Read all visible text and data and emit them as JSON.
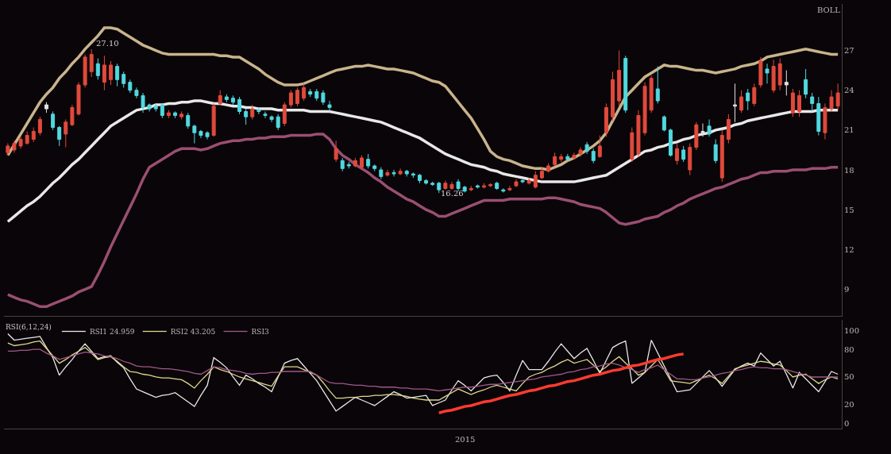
{
  "chart_data": [
    {
      "type": "candlestick",
      "categories": [
        null,
        null,
        null,
        null,
        null,
        null,
        null,
        null,
        null,
        null,
        null,
        null,
        null,
        null,
        null,
        null,
        null,
        null,
        null,
        null,
        null,
        null,
        null,
        null,
        null,
        null,
        null,
        null,
        null,
        null,
        null,
        null,
        null,
        null,
        null,
        null,
        null,
        null,
        null,
        null,
        null,
        null,
        null,
        null,
        null,
        null,
        null,
        null,
        null,
        null,
        null,
        null,
        null,
        null,
        null,
        null,
        null,
        null,
        null,
        null,
        null,
        null,
        null,
        null,
        null,
        null,
        null,
        null,
        null,
        null,
        null,
        null,
        null,
        null,
        null,
        null,
        null,
        null,
        null,
        null,
        null,
        null,
        null,
        null,
        null,
        null,
        null,
        null,
        null,
        null,
        null,
        null,
        null,
        null,
        null,
        null,
        null,
        null,
        null,
        null,
        null,
        null,
        null,
        null,
        null,
        null,
        null,
        null,
        null,
        null,
        null,
        null,
        null,
        null,
        null,
        null,
        null,
        null,
        null,
        null,
        null,
        null,
        null,
        null,
        null,
        null,
        null,
        null,
        null,
        null
      ],
      "ohlc": [
        [
          19.3,
          20.0,
          19.1,
          19.8
        ],
        [
          19.5,
          20.2,
          19.3,
          20.0
        ],
        [
          19.8,
          20.5,
          19.6,
          20.3
        ],
        [
          20.0,
          20.9,
          19.9,
          20.6
        ],
        [
          20.3,
          21.2,
          20.1,
          20.9
        ],
        [
          20.8,
          22.0,
          20.6,
          21.8
        ],
        [
          22.9,
          23.1,
          22.3,
          22.6
        ],
        [
          22.2,
          22.4,
          21.0,
          21.2
        ],
        [
          21.2,
          21.3,
          19.8,
          20.3
        ],
        [
          20.7,
          21.8,
          19.7,
          21.6
        ],
        [
          21.4,
          22.9,
          21.3,
          22.7
        ],
        [
          22.2,
          24.6,
          22.1,
          24.4
        ],
        [
          24.4,
          26.7,
          24.2,
          26.5
        ],
        [
          25.4,
          27.1,
          25.0,
          26.7
        ],
        [
          26.0,
          26.4,
          24.8,
          25.1
        ],
        [
          24.6,
          26.6,
          24.0,
          25.9
        ],
        [
          24.8,
          26.2,
          24.4,
          25.9
        ],
        [
          25.8,
          26.0,
          24.3,
          24.8
        ],
        [
          25.2,
          25.4,
          24.2,
          24.5
        ],
        [
          24.6,
          24.8,
          23.8,
          24.0
        ],
        [
          24.0,
          24.2,
          23.4,
          23.6
        ],
        [
          23.6,
          23.8,
          22.3,
          22.7
        ],
        [
          22.9,
          23.0,
          22.4,
          22.6
        ],
        [
          22.8,
          23.0,
          22.4,
          22.6
        ],
        [
          22.9,
          23.0,
          21.9,
          22.1
        ],
        [
          22.1,
          22.5,
          21.9,
          22.3
        ],
        [
          22.3,
          22.4,
          21.9,
          22.1
        ],
        [
          22.0,
          22.4,
          21.8,
          22.2
        ],
        [
          22.1,
          22.3,
          21.1,
          21.3
        ],
        [
          21.3,
          21.4,
          20.0,
          20.8
        ],
        [
          20.9,
          21.0,
          20.4,
          20.6
        ],
        [
          20.8,
          20.9,
          20.3,
          20.5
        ],
        [
          20.6,
          23.0,
          20.5,
          22.8
        ],
        [
          23.0,
          24.0,
          22.9,
          23.6
        ],
        [
          23.5,
          23.7,
          23.1,
          23.3
        ],
        [
          23.4,
          23.6,
          22.9,
          23.1
        ],
        [
          23.3,
          23.5,
          22.2,
          22.4
        ],
        [
          22.4,
          22.6,
          21.4,
          22.0
        ],
        [
          22.0,
          22.9,
          21.8,
          22.6
        ],
        [
          22.5,
          22.7,
          22.2,
          22.4
        ],
        [
          22.2,
          22.4,
          21.9,
          22.1
        ],
        [
          22.0,
          22.1,
          21.6,
          21.8
        ],
        [
          22.0,
          22.2,
          21.0,
          21.2
        ],
        [
          21.5,
          23.1,
          21.3,
          22.9
        ],
        [
          22.9,
          24.0,
          22.7,
          23.8
        ],
        [
          23.0,
          24.2,
          22.8,
          24.0
        ],
        [
          23.4,
          24.5,
          23.2,
          24.2
        ],
        [
          23.9,
          24.1,
          23.5,
          23.7
        ],
        [
          23.9,
          24.1,
          23.2,
          23.4
        ],
        [
          23.8,
          24.0,
          22.9,
          23.1
        ],
        [
          22.9,
          23.2,
          22.4,
          22.7
        ],
        [
          18.8,
          20.2,
          18.6,
          19.6
        ],
        [
          18.7,
          18.9,
          17.9,
          18.1
        ],
        [
          18.4,
          18.6,
          18.1,
          18.3
        ],
        [
          18.3,
          18.9,
          18.2,
          18.7
        ],
        [
          18.2,
          19.1,
          18.0,
          18.9
        ],
        [
          18.8,
          19.2,
          18.1,
          18.3
        ],
        [
          18.3,
          18.4,
          17.9,
          18.1
        ],
        [
          18.0,
          18.2,
          17.3,
          17.5
        ],
        [
          17.6,
          18.0,
          17.5,
          17.8
        ],
        [
          17.8,
          18.0,
          17.5,
          17.7
        ],
        [
          17.7,
          18.1,
          17.6,
          17.9
        ],
        [
          17.9,
          18.0,
          17.5,
          17.7
        ],
        [
          17.7,
          17.8,
          17.4,
          17.6
        ],
        [
          17.6,
          17.7,
          17.0,
          17.2
        ],
        [
          17.2,
          17.3,
          16.9,
          17.0
        ],
        [
          17.0,
          17.1,
          16.8,
          16.9
        ],
        [
          17.0,
          17.1,
          16.26,
          16.5
        ],
        [
          16.6,
          17.2,
          16.5,
          17.0
        ],
        [
          16.6,
          17.1,
          16.5,
          16.9
        ],
        [
          17.1,
          17.3,
          16.4,
          16.6
        ],
        [
          16.7,
          16.8,
          16.3,
          16.4
        ],
        [
          16.5,
          16.8,
          16.4,
          16.6
        ],
        [
          16.8,
          16.9,
          16.6,
          16.7
        ],
        [
          16.7,
          17.0,
          16.6,
          16.8
        ],
        [
          16.8,
          17.0,
          16.7,
          16.9
        ],
        [
          17.0,
          17.1,
          16.5,
          16.6
        ],
        [
          16.5,
          16.6,
          16.3,
          16.4
        ],
        [
          16.5,
          16.8,
          16.4,
          16.6
        ],
        [
          16.8,
          17.3,
          16.7,
          17.1
        ],
        [
          17.2,
          17.4,
          17.0,
          17.1
        ],
        [
          17.0,
          17.4,
          16.9,
          17.2
        ],
        [
          16.7,
          17.9,
          16.6,
          17.6
        ],
        [
          17.4,
          18.2,
          17.3,
          17.9
        ],
        [
          17.9,
          18.5,
          17.8,
          18.3
        ],
        [
          18.4,
          19.3,
          18.3,
          19.0
        ],
        [
          18.8,
          19.2,
          18.6,
          19.0
        ],
        [
          19.0,
          19.2,
          18.7,
          18.8
        ],
        [
          18.9,
          19.3,
          18.8,
          19.1
        ],
        [
          19.2,
          19.7,
          19.0,
          19.5
        ],
        [
          19.9,
          20.1,
          19.2,
          19.4
        ],
        [
          19.4,
          19.6,
          18.5,
          18.7
        ],
        [
          19.0,
          20.6,
          18.9,
          19.8
        ],
        [
          20.8,
          23.0,
          20.5,
          22.7
        ],
        [
          22.0,
          25.4,
          21.7,
          24.8
        ],
        [
          23.2,
          27.0,
          22.8,
          25.5
        ],
        [
          26.4,
          26.6,
          22.3,
          22.5
        ],
        [
          18.8,
          21.2,
          18.6,
          20.8
        ],
        [
          19.2,
          22.5,
          19.0,
          22.1
        ],
        [
          20.8,
          24.6,
          20.6,
          24.3
        ],
        [
          22.5,
          25.1,
          22.3,
          24.9
        ],
        [
          24.1,
          25.8,
          23.0,
          23.2
        ],
        [
          22.0,
          22.1,
          20.9,
          21.0
        ],
        [
          21.0,
          21.1,
          19.0,
          19.1
        ],
        [
          18.7,
          20.0,
          18.4,
          19.6
        ],
        [
          19.5,
          19.8,
          18.6,
          18.8
        ],
        [
          18.0,
          20.0,
          17.6,
          19.7
        ],
        [
          19.7,
          21.6,
          19.5,
          21.4
        ],
        [
          20.9,
          21.5,
          20.5,
          20.8
        ],
        [
          21.3,
          21.8,
          20.5,
          20.7
        ],
        [
          19.9,
          20.3,
          18.5,
          18.7
        ],
        [
          17.4,
          21.0,
          17.1,
          20.6
        ],
        [
          20.3,
          22.2,
          20.0,
          21.8
        ],
        [
          22.8,
          24.5,
          21.6,
          22.9
        ],
        [
          22.5,
          24.0,
          22.3,
          23.5
        ],
        [
          23.8,
          24.1,
          22.5,
          23.2
        ],
        [
          23.0,
          24.5,
          22.8,
          24.2
        ],
        [
          24.4,
          26.5,
          24.2,
          26.2
        ],
        [
          25.6,
          26.0,
          24.5,
          25.3
        ],
        [
          24.0,
          26.3,
          23.8,
          25.8
        ],
        [
          24.4,
          26.4,
          24.0,
          26.0
        ],
        [
          24.4,
          25.5,
          23.6,
          24.6
        ],
        [
          22.3,
          24.1,
          22.0,
          23.8
        ],
        [
          22.4,
          24.0,
          22.0,
          23.6
        ],
        [
          24.8,
          25.6,
          23.4,
          23.7
        ],
        [
          23.5,
          23.8,
          22.4,
          23.0
        ],
        [
          23.0,
          23.5,
          20.6,
          20.9
        ],
        [
          20.8,
          23.0,
          20.3,
          22.7
        ],
        [
          22.6,
          24.0,
          22.4,
          23.5
        ],
        [
          22.8,
          24.5,
          22.5,
          23.8
        ]
      ],
      "colors": [
        "#e04a3c",
        "#e04a3c",
        "#e04a3c",
        "#e04a3c",
        "#e04a3c",
        "#e04a3c",
        "#e0e0e0",
        "#50d8e0",
        "#50d8e0",
        "#e04a3c",
        "#e04a3c",
        "#e04a3c",
        "#e04a3c",
        "#e04a3c",
        "#50d8e0",
        "#e04a3c",
        "#e04a3c",
        "#50d8e0",
        "#50d8e0",
        "#50d8e0",
        "#50d8e0",
        "#50d8e0",
        "#50d8e0",
        "#50d8e0",
        "#50d8e0",
        "#e04a3c",
        "#50d8e0",
        "#e04a3c",
        "#50d8e0",
        "#50d8e0",
        "#50d8e0",
        "#50d8e0",
        "#e04a3c",
        "#e04a3c",
        "#50d8e0",
        "#50d8e0",
        "#50d8e0",
        "#50d8e0",
        "#e04a3c",
        "#50d8e0",
        "#50d8e0",
        "#50d8e0",
        "#50d8e0",
        "#e04a3c",
        "#e04a3c",
        "#e04a3c",
        "#e04a3c",
        "#50d8e0",
        "#50d8e0",
        "#50d8e0",
        "#50d8e0",
        "#e04a3c",
        "#50d8e0",
        "#50d8e0",
        "#e04a3c",
        "#e04a3c",
        "#50d8e0",
        "#50d8e0",
        "#50d8e0",
        "#e04a3c",
        "#50d8e0",
        "#e04a3c",
        "#50d8e0",
        "#50d8e0",
        "#50d8e0",
        "#50d8e0",
        "#50d8e0",
        "#50d8e0",
        "#e04a3c",
        "#e04a3c",
        "#50d8e0",
        "#50d8e0",
        "#e04a3c",
        "#50d8e0",
        "#e04a3c",
        "#e04a3c",
        "#50d8e0",
        "#50d8e0",
        "#e04a3c",
        "#e04a3c",
        "#50d8e0",
        "#e04a3c",
        "#e04a3c",
        "#e04a3c",
        "#e04a3c",
        "#e04a3c",
        "#e04a3c",
        "#50d8e0",
        "#e04a3c",
        "#e04a3c",
        "#50d8e0",
        "#50d8e0",
        "#e04a3c",
        "#e04a3c",
        "#e04a3c",
        "#e04a3c",
        "#50d8e0",
        "#e04a3c",
        "#e04a3c",
        "#e04a3c",
        "#e04a3c",
        "#50d8e0",
        "#50d8e0",
        "#50d8e0",
        "#e04a3c",
        "#50d8e0",
        "#e04a3c",
        "#e04a3c",
        "#e0e0e0",
        "#50d8e0",
        "#50d8e0",
        "#e04a3c",
        "#e04a3c",
        "#e0e0e0",
        "#e04a3c",
        "#50d8e0",
        "#e04a3c",
        "#e04a3c",
        "#50d8e0",
        "#e04a3c",
        "#e04a3c",
        "#e0e0e0",
        "#e04a3c",
        "#e04a3c",
        "#50d8e0",
        "#50d8e0",
        "#50d8e0",
        "#e04a3c",
        "#e04a3c",
        "#e04a3c"
      ],
      "series": [
        {
          "type": "line",
          "color": "#c8b48c",
          "values": [
            19.1,
            19.9,
            20.7,
            21.5,
            22.3,
            23.1,
            23.7,
            24.2,
            24.9,
            25.4,
            26.0,
            26.5,
            27.1,
            27.6,
            28.1,
            28.7,
            28.7,
            28.6,
            28.3,
            28.0,
            27.7,
            27.4,
            27.2,
            27.0,
            26.8,
            26.7,
            26.7,
            26.7,
            26.7,
            26.7,
            26.7,
            26.7,
            26.7,
            26.6,
            26.6,
            26.5,
            26.5,
            26.2,
            25.9,
            25.6,
            25.2,
            24.9,
            24.6,
            24.4,
            24.4,
            24.4,
            24.5,
            24.7,
            24.9,
            25.1,
            25.3,
            25.5,
            25.6,
            25.7,
            25.8,
            25.8,
            25.9,
            25.8,
            25.7,
            25.6,
            25.6,
            25.5,
            25.4,
            25.3,
            25.1,
            24.9,
            24.7,
            24.6,
            24.3,
            23.7,
            23.1,
            22.5,
            21.9,
            21.1,
            20.3,
            19.4,
            19.0,
            18.8,
            18.7,
            18.5,
            18.3,
            18.2,
            18.1,
            18.1,
            18.0,
            18.2,
            18.4,
            18.7,
            18.9,
            19.2,
            19.5,
            19.8,
            20.2,
            20.8,
            21.7,
            22.6,
            23.5,
            24.0,
            24.5,
            25.0,
            25.3,
            25.6,
            25.9,
            25.8,
            25.8,
            25.7,
            25.6,
            25.5,
            25.5,
            25.4,
            25.3,
            25.4,
            25.5,
            25.6,
            25.8,
            25.9,
            26.0,
            26.2,
            26.5,
            26.6,
            26.7,
            26.8,
            26.9,
            27.0,
            27.1,
            27.0,
            26.9,
            26.8,
            26.7,
            26.7
          ]
        },
        {
          "type": "line",
          "color": "#e8e8e8",
          "values": [
            14.1,
            14.5,
            14.9,
            15.3,
            15.6,
            16.0,
            16.5,
            17.0,
            17.4,
            17.9,
            18.4,
            18.8,
            19.3,
            19.8,
            20.3,
            20.8,
            21.3,
            21.6,
            21.9,
            22.2,
            22.5,
            22.6,
            22.7,
            22.9,
            22.9,
            23.0,
            23.0,
            23.1,
            23.1,
            23.2,
            23.2,
            23.1,
            23.0,
            23.0,
            22.9,
            22.8,
            22.8,
            22.7,
            22.7,
            22.6,
            22.6,
            22.6,
            22.5,
            22.5,
            22.5,
            22.5,
            22.5,
            22.4,
            22.4,
            22.4,
            22.4,
            22.3,
            22.2,
            22.1,
            22.0,
            21.9,
            21.8,
            21.7,
            21.6,
            21.4,
            21.2,
            21.0,
            20.8,
            20.6,
            20.4,
            20.1,
            19.8,
            19.5,
            19.2,
            19.0,
            18.8,
            18.6,
            18.4,
            18.3,
            18.2,
            18.0,
            17.9,
            17.7,
            17.6,
            17.5,
            17.4,
            17.3,
            17.2,
            17.1,
            17.1,
            17.1,
            17.1,
            17.1,
            17.1,
            17.2,
            17.3,
            17.4,
            17.5,
            17.6,
            17.9,
            18.2,
            18.5,
            18.8,
            19.1,
            19.4,
            19.5,
            19.7,
            19.8,
            20.0,
            20.1,
            20.3,
            20.4,
            20.6,
            20.7,
            20.8,
            21.0,
            21.1,
            21.2,
            21.4,
            21.5,
            21.7,
            21.8,
            21.9,
            22.0,
            22.1,
            22.2,
            22.3,
            22.4,
            22.4,
            22.4,
            22.4,
            22.5,
            22.5,
            22.5,
            22.5
          ]
        },
        {
          "type": "line",
          "color": "#9a4f72",
          "values": [
            8.6,
            8.4,
            8.2,
            8.1,
            7.9,
            7.7,
            7.7,
            7.9,
            8.1,
            8.3,
            8.5,
            8.8,
            9.0,
            9.2,
            10.1,
            11.1,
            12.2,
            13.2,
            14.2,
            15.2,
            16.2,
            17.3,
            18.2,
            18.5,
            18.8,
            19.1,
            19.4,
            19.6,
            19.6,
            19.6,
            19.5,
            19.6,
            19.8,
            20.0,
            20.1,
            20.2,
            20.2,
            20.3,
            20.3,
            20.4,
            20.4,
            20.5,
            20.5,
            20.5,
            20.6,
            20.6,
            20.6,
            20.6,
            20.7,
            20.7,
            20.3,
            19.6,
            19.1,
            18.8,
            18.4,
            18.1,
            17.8,
            17.4,
            17.1,
            16.7,
            16.4,
            16.1,
            15.8,
            15.6,
            15.3,
            15.0,
            14.8,
            14.5,
            14.5,
            14.7,
            14.9,
            15.1,
            15.3,
            15.5,
            15.7,
            15.7,
            15.7,
            15.7,
            15.8,
            15.8,
            15.8,
            15.8,
            15.8,
            15.8,
            15.9,
            15.9,
            15.8,
            15.7,
            15.6,
            15.4,
            15.3,
            15.2,
            15.1,
            14.8,
            14.4,
            14.0,
            13.9,
            14.0,
            14.1,
            14.3,
            14.4,
            14.5,
            14.8,
            15.0,
            15.3,
            15.5,
            15.8,
            16.0,
            16.2,
            16.4,
            16.6,
            16.7,
            16.9,
            17.1,
            17.3,
            17.4,
            17.6,
            17.8,
            17.8,
            17.9,
            17.9,
            17.9,
            18.0,
            18.0,
            18.0,
            18.1,
            18.1,
            18.1,
            18.2,
            18.2
          ]
        }
      ],
      "ylim": [
        7,
        30.5
      ],
      "yticks": [
        9,
        12,
        15,
        18,
        21,
        24,
        27
      ],
      "tick_labels": "y",
      "annotations": [
        "BOLL",
        "27.10",
        {
          "text": "16.26",
          "y": 16.26
        }
      ]
    },
    {
      "type": "line",
      "legend_title": "RSI(6,12,24)",
      "legend": "top left",
      "categories": [
        null,
        null,
        null,
        null,
        null,
        null,
        null,
        null,
        null,
        null,
        null,
        null,
        null,
        null,
        null,
        null,
        null,
        null,
        null,
        null,
        null,
        null,
        null,
        null,
        null,
        null,
        null,
        null,
        null,
        null,
        null,
        null,
        null,
        null,
        null,
        null,
        null,
        null,
        null,
        null,
        null,
        null,
        null,
        null,
        null,
        null,
        null,
        null,
        null,
        null,
        null,
        null,
        null,
        null,
        null,
        null,
        null,
        null,
        null,
        null,
        null,
        null,
        null,
        null,
        null,
        null,
        null,
        null,
        null,
        null,
        null,
        null,
        null,
        null,
        null,
        null,
        null,
        null,
        null,
        null,
        null,
        null,
        null,
        null,
        null,
        null,
        null,
        null,
        null,
        null,
        null,
        null,
        null,
        null,
        null,
        null,
        null,
        null,
        null,
        null,
        null,
        null,
        null,
        null,
        null,
        null,
        null,
        null,
        null,
        null,
        null,
        null,
        null,
        null,
        null,
        null,
        null,
        null,
        null,
        null,
        null,
        null,
        null,
        null,
        null,
        null,
        null,
        null,
        null,
        null
      ],
      "series": [
        {
          "name": "RSI1 24.959",
          "color": "#e8e8e8",
          "values": [
            97,
            90,
            91,
            92,
            93,
            94,
            82,
            71,
            52,
            61,
            69,
            78,
            86,
            78,
            70,
            72,
            73,
            66,
            60,
            48,
            37,
            34,
            31,
            28,
            30,
            31,
            33,
            28,
            23,
            18,
            30,
            41,
            71,
            66,
            60,
            50,
            41,
            52,
            48,
            43,
            39,
            34,
            50,
            65,
            68,
            70,
            62,
            54,
            46,
            35,
            24,
            13,
            18,
            23,
            28,
            25,
            22,
            19,
            24,
            29,
            34,
            31,
            27,
            28,
            29,
            30,
            19,
            22,
            25,
            36,
            46,
            41,
            35,
            42,
            49,
            51,
            52,
            44,
            35,
            52,
            68,
            58,
            58,
            58,
            67,
            77,
            86,
            78,
            70,
            76,
            81,
            68,
            54,
            68,
            82,
            86,
            89,
            43,
            49,
            55,
            90,
            76,
            62,
            48,
            34,
            35,
            36,
            43,
            50,
            57,
            49,
            40,
            49,
            58,
            62,
            65,
            62,
            76,
            69,
            62,
            67,
            53,
            38,
            55,
            48,
            41,
            34,
            45,
            56,
            53
          ]
        },
        {
          "name": "RSI2 43.205",
          "color": "#e0d890",
          "values": [
            87,
            84,
            85,
            86,
            88,
            89,
            81,
            73,
            65,
            69,
            74,
            78,
            82,
            76,
            69,
            71,
            72,
            67,
            61,
            56,
            55,
            53,
            52,
            50,
            49,
            49,
            48,
            47,
            43,
            38,
            46,
            53,
            61,
            58,
            56,
            53,
            50,
            48,
            46,
            44,
            42,
            40,
            51,
            61,
            61,
            61,
            58,
            55,
            52,
            44,
            35,
            27,
            27,
            28,
            28,
            29,
            29,
            30,
            30,
            31,
            31,
            30,
            29,
            27,
            26,
            25,
            25,
            25,
            29,
            33,
            37,
            34,
            31,
            34,
            36,
            39,
            41,
            39,
            37,
            35,
            43,
            50,
            53,
            55,
            59,
            62,
            66,
            69,
            65,
            67,
            69,
            63,
            56,
            61,
            67,
            72,
            65,
            59,
            52,
            55,
            62,
            69,
            58,
            46,
            45,
            44,
            43,
            46,
            49,
            52,
            48,
            43,
            51,
            59,
            61,
            63,
            65,
            67,
            66,
            64,
            63,
            57,
            50,
            52,
            53,
            48,
            43,
            47,
            50,
            48
          ]
        },
        {
          "name": "RSI3",
          "color": "#a0588c",
          "values": [
            78,
            78,
            79,
            79,
            80,
            80,
            76,
            73,
            69,
            71,
            73,
            75,
            77,
            76,
            75,
            73,
            72,
            70,
            67,
            65,
            62,
            61,
            61,
            60,
            59,
            59,
            58,
            57,
            56,
            54,
            53,
            57,
            61,
            60,
            58,
            57,
            56,
            54,
            53,
            54,
            54,
            55,
            55,
            56,
            56,
            56,
            56,
            56,
            52,
            48,
            44,
            43,
            43,
            42,
            41,
            41,
            40,
            40,
            39,
            39,
            39,
            38,
            38,
            37,
            37,
            37,
            36,
            35,
            36,
            37,
            38,
            39,
            39,
            40,
            41,
            42,
            42,
            43,
            44,
            45,
            46,
            47,
            48,
            50,
            51,
            52,
            53,
            55,
            56,
            58,
            59,
            61,
            62,
            64,
            65,
            63,
            60,
            58,
            55,
            58,
            60,
            63,
            58,
            53,
            48,
            48,
            47,
            47,
            49,
            50,
            52,
            54,
            55,
            57,
            58,
            60,
            61,
            60,
            60,
            59,
            59,
            58,
            56,
            54,
            52,
            50,
            50,
            50,
            50,
            50
          ]
        },
        {
          "color": "#ff3b30",
          "values": [
            null,
            null,
            null,
            null,
            null,
            null,
            null,
            null,
            null,
            null,
            null,
            null,
            null,
            null,
            null,
            null,
            null,
            null,
            null,
            null,
            null,
            null,
            null,
            null,
            null,
            null,
            null,
            null,
            null,
            null,
            null,
            null,
            null,
            null,
            null,
            null,
            null,
            null,
            null,
            null,
            null,
            null,
            null,
            null,
            null,
            null,
            null,
            null,
            null,
            null,
            null,
            null,
            null,
            null,
            null,
            null,
            null,
            null,
            null,
            null,
            null,
            null,
            null,
            null,
            null,
            null,
            null,
            11,
            13,
            14,
            16,
            18,
            19,
            21,
            23,
            24,
            26,
            28,
            30,
            31,
            33,
            35,
            36,
            38,
            40,
            41,
            43,
            45,
            46,
            48,
            50,
            52,
            53,
            55,
            57,
            58,
            60,
            62,
            63,
            65,
            67,
            69,
            70,
            72,
            74,
            75,
            null,
            null,
            null,
            null,
            null,
            null,
            null,
            null,
            null,
            null,
            null,
            null,
            null,
            null,
            null,
            null,
            null,
            null,
            null,
            null,
            null,
            null,
            null,
            null
          ]
        }
      ],
      "ylim": [
        -6,
        112
      ],
      "yticks": [
        0,
        20,
        50,
        80,
        100
      ],
      "tick_labels": "y",
      "annotations": [
        "2015"
      ]
    }
  ]
}
